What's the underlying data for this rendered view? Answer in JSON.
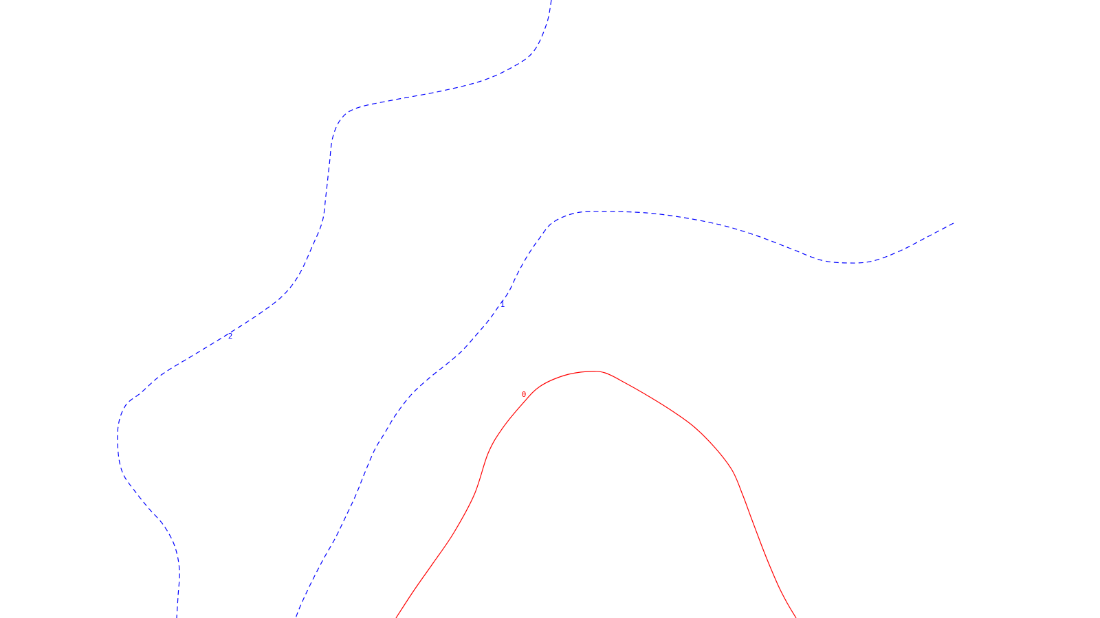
{
  "chart_data": {
    "type": "contour",
    "title": "",
    "xlabel": "",
    "ylabel": "",
    "grid": false,
    "legend": "none",
    "levels": [
      {
        "value": 2,
        "label": "2",
        "color": "#0000ff",
        "style": "dashed",
        "path": [
          [
            802,
            0
          ],
          [
            795,
            35
          ],
          [
            776,
            75
          ],
          [
            745,
            98
          ],
          [
            700,
            118
          ],
          [
            640,
            133
          ],
          [
            570,
            146
          ],
          [
            520,
            157
          ],
          [
            497,
            172
          ],
          [
            484,
            200
          ],
          [
            479,
            240
          ],
          [
            474,
            285
          ],
          [
            469,
            322
          ],
          [
            455,
            357
          ],
          [
            435,
            400
          ],
          [
            412,
            430
          ],
          [
            380,
            455
          ],
          [
            334,
            485
          ],
          [
            285,
            515
          ],
          [
            236,
            545
          ],
          [
            205,
            572
          ],
          [
            183,
            590
          ],
          [
            172,
            620
          ],
          [
            172,
            660
          ],
          [
            179,
            690
          ],
          [
            196,
            715
          ],
          [
            216,
            740
          ],
          [
            238,
            765
          ],
          [
            254,
            795
          ],
          [
            261,
            830
          ],
          [
            259,
            868
          ],
          [
            257,
            900
          ]
        ],
        "label_pos": [
          335,
          493
        ]
      },
      {
        "value": 1,
        "label": "1",
        "color": "#0000ff",
        "style": "dashed",
        "path": [
          [
            1387,
            325
          ],
          [
            1345,
            347
          ],
          [
            1310,
            365
          ],
          [
            1270,
            380
          ],
          [
            1235,
            383
          ],
          [
            1195,
            379
          ],
          [
            1150,
            362
          ],
          [
            1100,
            343
          ],
          [
            1050,
            328
          ],
          [
            995,
            317
          ],
          [
            940,
            310
          ],
          [
            880,
            308
          ],
          [
            838,
            310
          ],
          [
            804,
            324
          ],
          [
            784,
            348
          ],
          [
            767,
            373
          ],
          [
            752,
            400
          ],
          [
            740,
            425
          ],
          [
            726,
            445
          ],
          [
            712,
            465
          ],
          [
            696,
            484
          ],
          [
            672,
            511
          ],
          [
            650,
            530
          ],
          [
            625,
            550
          ],
          [
            598,
            575
          ],
          [
            575,
            605
          ],
          [
            560,
            630
          ],
          [
            545,
            655
          ],
          [
            530,
            690
          ],
          [
            518,
            720
          ],
          [
            504,
            750
          ],
          [
            487,
            785
          ],
          [
            470,
            815
          ],
          [
            452,
            850
          ],
          [
            438,
            880
          ],
          [
            430,
            900
          ]
        ],
        "label_pos": [
          731,
          447
        ]
      },
      {
        "value": 0,
        "label": "0",
        "color": "#ff0000",
        "style": "solid",
        "path": [
          [
            576,
            900
          ],
          [
            602,
            860
          ],
          [
            630,
            820
          ],
          [
            660,
            776
          ],
          [
            690,
            720
          ],
          [
            710,
            660
          ],
          [
            730,
            625
          ],
          [
            760,
            588
          ],
          [
            785,
            563
          ],
          [
            820,
            547
          ],
          [
            855,
            541
          ],
          [
            880,
            543
          ],
          [
            910,
            558
          ],
          [
            945,
            578
          ],
          [
            980,
            600
          ],
          [
            1010,
            622
          ],
          [
            1040,
            652
          ],
          [
            1065,
            685
          ],
          [
            1080,
            720
          ],
          [
            1093,
            755
          ],
          [
            1108,
            795
          ],
          [
            1120,
            825
          ],
          [
            1133,
            855
          ],
          [
            1146,
            880
          ],
          [
            1158,
            900
          ]
        ],
        "label_pos": [
          762,
          578
        ]
      }
    ]
  }
}
